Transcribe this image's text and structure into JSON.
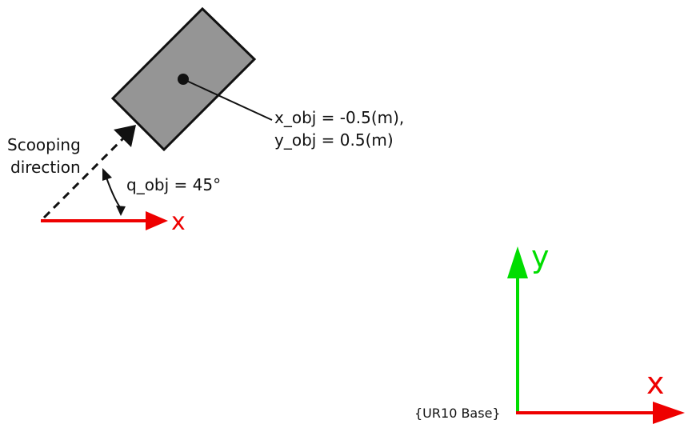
{
  "object": {
    "position_line1": "x_obj = -0.5(m),",
    "position_line2": "y_obj = 0.5(m)"
  },
  "scoop": {
    "direction_line1": "Scooping",
    "direction_line2": "direction",
    "angle_label": "q_obj = 45°"
  },
  "local_frame": {
    "x_label": "x"
  },
  "base_frame": {
    "x_label": "x",
    "y_label": "y",
    "base_label": "{UR10 Base}"
  },
  "colors": {
    "object_fill": "#959595",
    "x_axis": "#ee0000",
    "y_axis": "#00dd00",
    "stroke": "#111111"
  }
}
